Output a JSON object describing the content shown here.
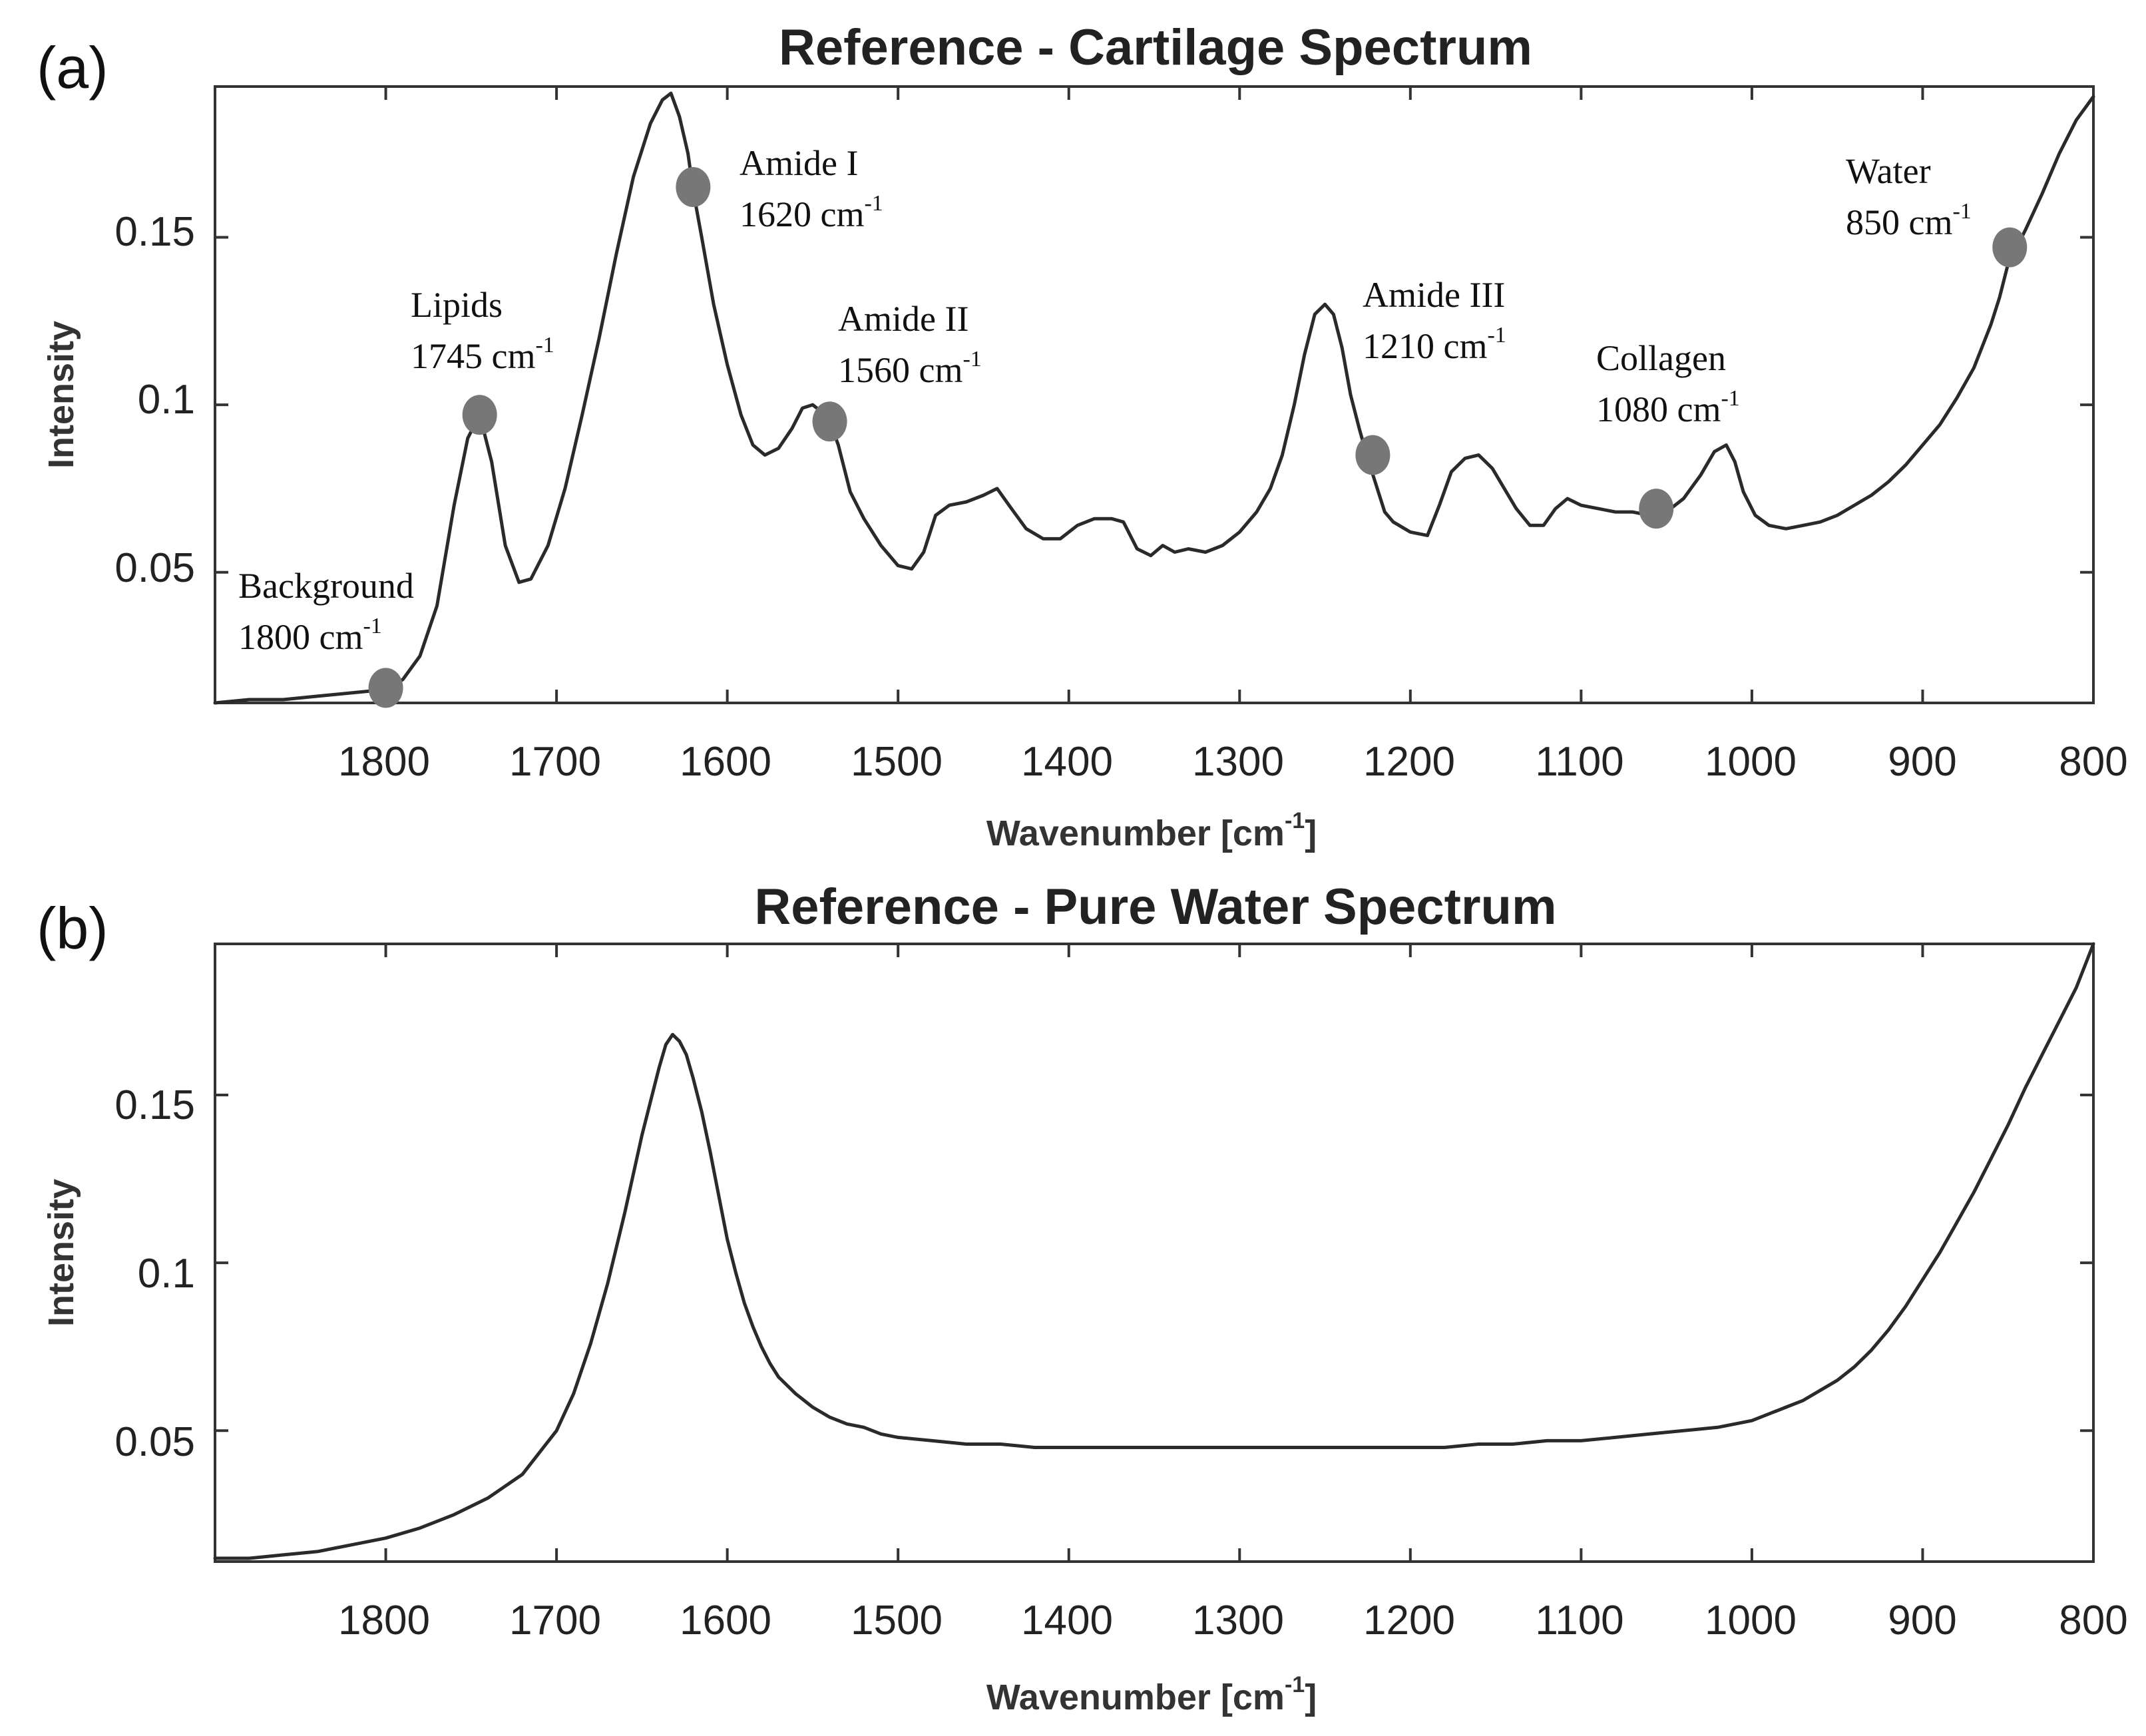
{
  "colors": {
    "line": "#2a2a2a",
    "marker": "#777777"
  },
  "chart_data": [
    {
      "panel": "(a)",
      "type": "line",
      "title": "Reference - Cartilage Spectrum",
      "xlabel": "Wavenumber [cm",
      "xlabel_sup": "-1",
      "xlabel_end": "]",
      "ylabel": "Intensity",
      "xlim": [
        1900,
        800
      ],
      "ylim": [
        0.011,
        0.195
      ],
      "xticks": [
        "1800",
        "1700",
        "1600",
        "1500",
        "1400",
        "1300",
        "1200",
        "1100",
        "1000",
        "900",
        "800"
      ],
      "yticks": [
        "0.05",
        "0.1",
        "0.15"
      ],
      "series": [
        {
          "name": "Cartilage",
          "x": [
            1900,
            1880,
            1860,
            1840,
            1820,
            1800,
            1790,
            1780,
            1770,
            1760,
            1752,
            1745,
            1738,
            1730,
            1722,
            1715,
            1705,
            1695,
            1685,
            1675,
            1665,
            1655,
            1645,
            1638,
            1633,
            1628,
            1623,
            1620,
            1615,
            1608,
            1600,
            1592,
            1585,
            1578,
            1570,
            1562,
            1556,
            1550,
            1545,
            1540,
            1535,
            1528,
            1520,
            1510,
            1500,
            1492,
            1485,
            1478,
            1470,
            1460,
            1450,
            1442,
            1435,
            1425,
            1415,
            1405,
            1395,
            1385,
            1375,
            1368,
            1360,
            1352,
            1345,
            1338,
            1330,
            1320,
            1310,
            1300,
            1290,
            1282,
            1275,
            1268,
            1262,
            1256,
            1250,
            1245,
            1240,
            1235,
            1230,
            1225,
            1220,
            1215,
            1210,
            1200,
            1190,
            1183,
            1176,
            1168,
            1160,
            1152,
            1145,
            1138,
            1130,
            1122,
            1115,
            1108,
            1100,
            1090,
            1080,
            1070,
            1060,
            1050,
            1040,
            1030,
            1022,
            1015,
            1010,
            1005,
            998,
            990,
            980,
            970,
            960,
            950,
            940,
            930,
            920,
            910,
            900,
            890,
            880,
            870,
            860,
            855,
            850,
            840,
            830,
            820,
            810,
            800
          ],
          "y": [
            0.011,
            0.012,
            0.012,
            0.013,
            0.014,
            0.015,
            0.018,
            0.025,
            0.04,
            0.07,
            0.09,
            0.097,
            0.083,
            0.058,
            0.047,
            0.048,
            0.058,
            0.075,
            0.097,
            0.12,
            0.145,
            0.168,
            0.184,
            0.191,
            0.193,
            0.186,
            0.175,
            0.164,
            0.15,
            0.13,
            0.112,
            0.097,
            0.088,
            0.085,
            0.087,
            0.093,
            0.099,
            0.1,
            0.098,
            0.095,
            0.088,
            0.074,
            0.066,
            0.058,
            0.052,
            0.051,
            0.056,
            0.067,
            0.07,
            0.071,
            0.073,
            0.075,
            0.07,
            0.063,
            0.06,
            0.06,
            0.064,
            0.066,
            0.066,
            0.065,
            0.057,
            0.055,
            0.058,
            0.056,
            0.057,
            0.056,
            0.058,
            0.062,
            0.068,
            0.075,
            0.085,
            0.1,
            0.115,
            0.127,
            0.13,
            0.127,
            0.117,
            0.103,
            0.093,
            0.084,
            0.076,
            0.068,
            0.065,
            0.062,
            0.061,
            0.07,
            0.08,
            0.084,
            0.085,
            0.081,
            0.075,
            0.069,
            0.064,
            0.064,
            0.069,
            0.072,
            0.07,
            0.069,
            0.068,
            0.068,
            0.067,
            0.068,
            0.072,
            0.079,
            0.086,
            0.088,
            0.083,
            0.074,
            0.067,
            0.064,
            0.063,
            0.064,
            0.065,
            0.067,
            0.07,
            0.073,
            0.077,
            0.082,
            0.088,
            0.094,
            0.102,
            0.111,
            0.124,
            0.132,
            0.142,
            0.152,
            0.163,
            0.175,
            0.185,
            0.192
          ]
        }
      ],
      "annotations": [
        {
          "label": "Background",
          "value": "1800 cm",
          "sup": "-1",
          "x": 1800,
          "y": 0.0155
        },
        {
          "label": "Lipids",
          "value": "1745 cm",
          "sup": "-1",
          "x": 1745,
          "y": 0.097
        },
        {
          "label": "Amide I",
          "value": "1620 cm",
          "sup": "-1",
          "x": 1620,
          "y": 0.165
        },
        {
          "label": "Amide II",
          "value": "1560 cm",
          "sup": "-1",
          "x": 1540,
          "y": 0.095
        },
        {
          "label": "Amide III",
          "value": "1210 cm",
          "sup": "-1",
          "x": 1222,
          "y": 0.085
        },
        {
          "label": "Collagen",
          "value": "1080 cm",
          "sup": "-1",
          "x": 1056,
          "y": 0.069
        },
        {
          "label": "Water",
          "value": "850 cm",
          "sup": "-1",
          "x": 849,
          "y": 0.147
        }
      ]
    },
    {
      "panel": "(b)",
      "type": "line",
      "title": "Reference - Pure Water Spectrum",
      "xlabel": "Wavenumber [cm",
      "xlabel_sup": "-1",
      "xlabel_end": "]",
      "ylabel": "Intensity",
      "xlim": [
        1900,
        800
      ],
      "ylim": [
        0.011,
        0.195
      ],
      "xticks": [
        "1800",
        "1700",
        "1600",
        "1500",
        "1400",
        "1300",
        "1200",
        "1100",
        "1000",
        "900",
        "800"
      ],
      "yticks": [
        "0.05",
        "0.1",
        "0.15"
      ],
      "series": [
        {
          "name": "Pure water",
          "x": [
            1900,
            1880,
            1860,
            1840,
            1820,
            1800,
            1780,
            1760,
            1740,
            1720,
            1700,
            1690,
            1680,
            1670,
            1660,
            1650,
            1645,
            1640,
            1636,
            1632,
            1628,
            1624,
            1620,
            1615,
            1610,
            1605,
            1600,
            1595,
            1590,
            1585,
            1580,
            1575,
            1570,
            1560,
            1550,
            1540,
            1530,
            1520,
            1510,
            1500,
            1480,
            1460,
            1440,
            1420,
            1400,
            1380,
            1360,
            1340,
            1320,
            1300,
            1280,
            1260,
            1240,
            1220,
            1200,
            1180,
            1160,
            1140,
            1120,
            1100,
            1080,
            1060,
            1040,
            1020,
            1000,
            990,
            980,
            970,
            960,
            950,
            940,
            930,
            920,
            910,
            900,
            890,
            880,
            870,
            860,
            850,
            840,
            830,
            820,
            810,
            800
          ],
          "y": [
            0.012,
            0.012,
            0.013,
            0.014,
            0.016,
            0.018,
            0.021,
            0.025,
            0.03,
            0.037,
            0.05,
            0.061,
            0.076,
            0.094,
            0.115,
            0.138,
            0.148,
            0.158,
            0.165,
            0.168,
            0.166,
            0.162,
            0.155,
            0.145,
            0.133,
            0.12,
            0.107,
            0.097,
            0.088,
            0.081,
            0.075,
            0.07,
            0.066,
            0.061,
            0.057,
            0.054,
            0.052,
            0.051,
            0.049,
            0.048,
            0.047,
            0.046,
            0.046,
            0.045,
            0.045,
            0.045,
            0.045,
            0.045,
            0.045,
            0.045,
            0.045,
            0.045,
            0.045,
            0.045,
            0.045,
            0.045,
            0.046,
            0.046,
            0.047,
            0.047,
            0.048,
            0.049,
            0.05,
            0.051,
            0.053,
            0.055,
            0.057,
            0.059,
            0.062,
            0.065,
            0.069,
            0.074,
            0.08,
            0.087,
            0.095,
            0.103,
            0.112,
            0.121,
            0.131,
            0.141,
            0.152,
            0.162,
            0.172,
            0.182,
            0.195
          ]
        }
      ]
    }
  ]
}
